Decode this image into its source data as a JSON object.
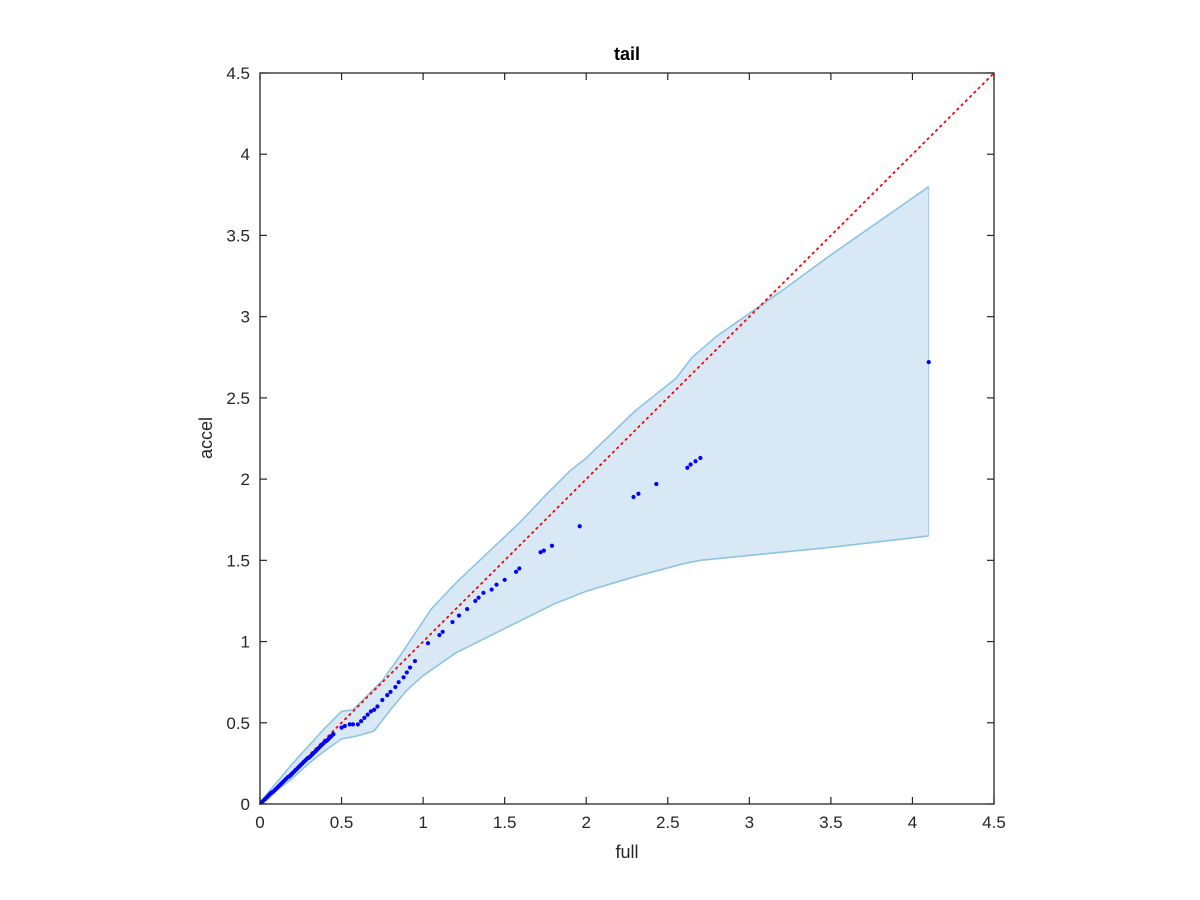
{
  "chart_data": {
    "type": "scatter",
    "title": "tail",
    "xlabel": "full",
    "ylabel": "accel",
    "xlim": [
      0,
      4.5
    ],
    "ylim": [
      0,
      4.5
    ],
    "xticks": [
      "0",
      "0.5",
      "1",
      "1.5",
      "2",
      "2.5",
      "3",
      "3.5",
      "4",
      "4.5"
    ],
    "yticks": [
      "0",
      "0.5",
      "1",
      "1.5",
      "2",
      "2.5",
      "3",
      "3.5",
      "4",
      "4.5"
    ],
    "grid": false,
    "colors": {
      "points": "#0000ff",
      "reference_line": "#ff0000",
      "band_fill": "#d8e8f5",
      "band_edge": "#8ec3e4",
      "axes": "#262626"
    },
    "reference_line": {
      "x": [
        0,
        4.5
      ],
      "y": [
        0,
        4.5
      ],
      "style": "dotted"
    },
    "band": {
      "upper": [
        [
          0,
          0
        ],
        [
          0.05,
          0.07
        ],
        [
          0.1,
          0.13
        ],
        [
          0.15,
          0.19
        ],
        [
          0.2,
          0.25
        ],
        [
          0.3,
          0.36
        ],
        [
          0.4,
          0.47
        ],
        [
          0.5,
          0.57
        ],
        [
          0.57,
          0.58
        ],
        [
          0.65,
          0.66
        ],
        [
          0.75,
          0.76
        ],
        [
          0.85,
          0.9
        ],
        [
          0.95,
          1.05
        ],
        [
          1.05,
          1.2
        ],
        [
          1.2,
          1.36
        ],
        [
          1.4,
          1.55
        ],
        [
          1.6,
          1.74
        ],
        [
          1.75,
          1.9
        ],
        [
          1.9,
          2.05
        ],
        [
          2.0,
          2.13
        ],
        [
          2.3,
          2.42
        ],
        [
          2.55,
          2.62
        ],
        [
          2.65,
          2.75
        ],
        [
          2.8,
          2.88
        ],
        [
          3.0,
          3.02
        ],
        [
          3.2,
          3.16
        ],
        [
          3.5,
          3.38
        ],
        [
          3.8,
          3.59
        ],
        [
          4.1,
          3.8
        ]
      ],
      "lower": [
        [
          0,
          0
        ],
        [
          0.05,
          0.03
        ],
        [
          0.1,
          0.08
        ],
        [
          0.2,
          0.16
        ],
        [
          0.3,
          0.25
        ],
        [
          0.4,
          0.33
        ],
        [
          0.5,
          0.4
        ],
        [
          0.6,
          0.42
        ],
        [
          0.7,
          0.45
        ],
        [
          0.8,
          0.58
        ],
        [
          0.9,
          0.7
        ],
        [
          1.0,
          0.79
        ],
        [
          1.1,
          0.86
        ],
        [
          1.2,
          0.93
        ],
        [
          1.4,
          1.03
        ],
        [
          1.6,
          1.13
        ],
        [
          1.8,
          1.23
        ],
        [
          2.0,
          1.31
        ],
        [
          2.3,
          1.4
        ],
        [
          2.6,
          1.48
        ],
        [
          2.7,
          1.5
        ],
        [
          3.0,
          1.53
        ],
        [
          3.5,
          1.58
        ],
        [
          4.1,
          1.65
        ]
      ]
    },
    "points": {
      "x": [
        0.01,
        0.02,
        0.03,
        0.04,
        0.05,
        0.06,
        0.07,
        0.08,
        0.09,
        0.1,
        0.11,
        0.12,
        0.13,
        0.14,
        0.15,
        0.16,
        0.17,
        0.18,
        0.19,
        0.2,
        0.21,
        0.22,
        0.23,
        0.24,
        0.25,
        0.26,
        0.27,
        0.28,
        0.29,
        0.3,
        0.31,
        0.32,
        0.33,
        0.34,
        0.35,
        0.36,
        0.37,
        0.38,
        0.39,
        0.4,
        0.41,
        0.42,
        0.43,
        0.44,
        0.45,
        0.5,
        0.52,
        0.55,
        0.57,
        0.6,
        0.62,
        0.64,
        0.66,
        0.68,
        0.7,
        0.72,
        0.75,
        0.78,
        0.8,
        0.83,
        0.85,
        0.88,
        0.9,
        0.92,
        0.95,
        1.03,
        1.1,
        1.12,
        1.18,
        1.22,
        1.27,
        1.32,
        1.34,
        1.37,
        1.42,
        1.45,
        1.5,
        1.57,
        1.59,
        1.72,
        1.74,
        1.79,
        1.96,
        2.29,
        2.32,
        2.43,
        2.62,
        2.64,
        2.67,
        2.7,
        4.1
      ],
      "y": [
        0.01,
        0.02,
        0.03,
        0.04,
        0.05,
        0.06,
        0.07,
        0.075,
        0.085,
        0.095,
        0.105,
        0.115,
        0.125,
        0.135,
        0.145,
        0.155,
        0.165,
        0.17,
        0.18,
        0.19,
        0.2,
        0.21,
        0.22,
        0.23,
        0.24,
        0.25,
        0.26,
        0.27,
        0.28,
        0.285,
        0.295,
        0.305,
        0.315,
        0.325,
        0.335,
        0.345,
        0.355,
        0.365,
        0.375,
        0.385,
        0.39,
        0.4,
        0.41,
        0.42,
        0.43,
        0.47,
        0.48,
        0.49,
        0.49,
        0.49,
        0.51,
        0.53,
        0.55,
        0.57,
        0.58,
        0.6,
        0.64,
        0.67,
        0.69,
        0.72,
        0.75,
        0.78,
        0.81,
        0.84,
        0.88,
        0.99,
        1.04,
        1.06,
        1.12,
        1.16,
        1.2,
        1.25,
        1.27,
        1.3,
        1.32,
        1.35,
        1.38,
        1.43,
        1.45,
        1.55,
        1.56,
        1.59,
        1.71,
        1.89,
        1.91,
        1.97,
        2.07,
        2.09,
        2.11,
        2.13,
        2.72
      ]
    }
  }
}
